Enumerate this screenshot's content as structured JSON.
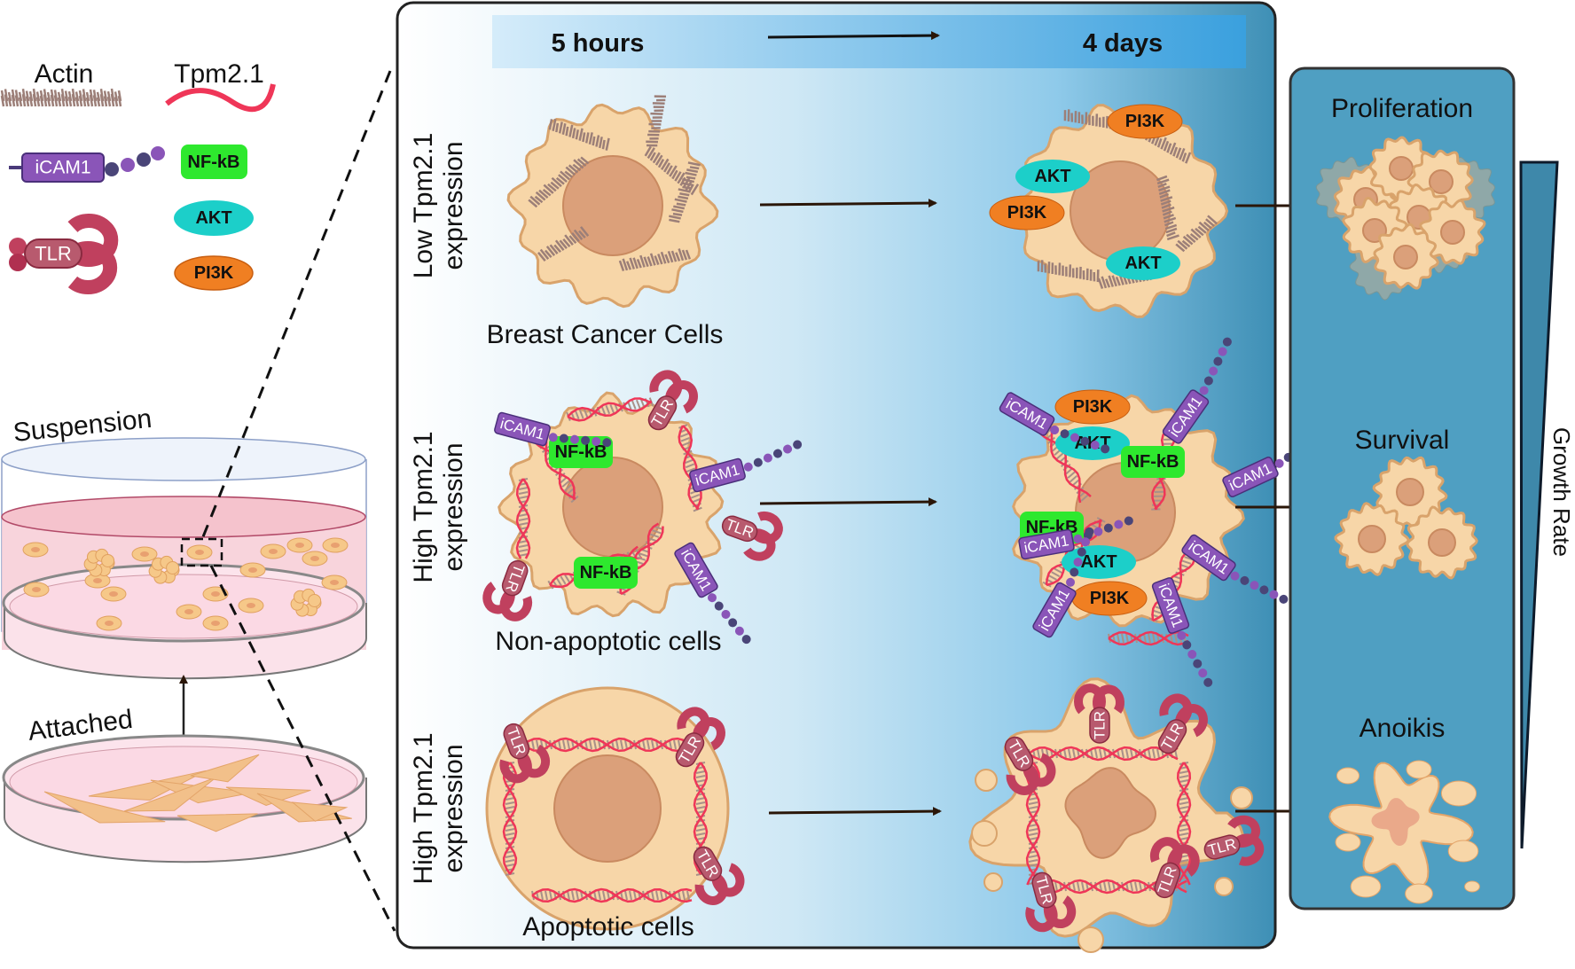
{
  "legend": {
    "actin": "Actin",
    "tpm": "Tpm2.1",
    "icam1": "iCAM1",
    "nfkb": "NF-kB",
    "akt": "AKT",
    "pi3k": "PI3K",
    "tlr": "TLR"
  },
  "dishes": {
    "suspension": "Suspension",
    "attached": "Attached"
  },
  "timeline": {
    "start": "5 hours",
    "end": "4 days"
  },
  "rows": [
    {
      "label_line1": "Low Tpm2.1",
      "label_line2": "expression",
      "caption": "Breast Cancer Cells",
      "outcome": "Proliferation"
    },
    {
      "label_line1": "High Tpm2.1",
      "label_line2": "expression",
      "caption": "Non-apoptotic cells",
      "outcome": "Survival"
    },
    {
      "label_line1": "High Tpm2.1",
      "label_line2": "expression",
      "caption": "Apoptotic cells",
      "outcome": "Anoikis"
    }
  ],
  "growth_rate": "Growth Rate",
  "colors": {
    "nfkb": "#2ee82e",
    "akt": "#1ccfc9",
    "pi3k": "#f07f22",
    "icam1": "#8a55b8",
    "tlr": "#c0405e",
    "tpm": "#ef3658",
    "cell": "#f7d6a8",
    "nucleus": "#dba07a",
    "panel": "#4f9fc2"
  }
}
